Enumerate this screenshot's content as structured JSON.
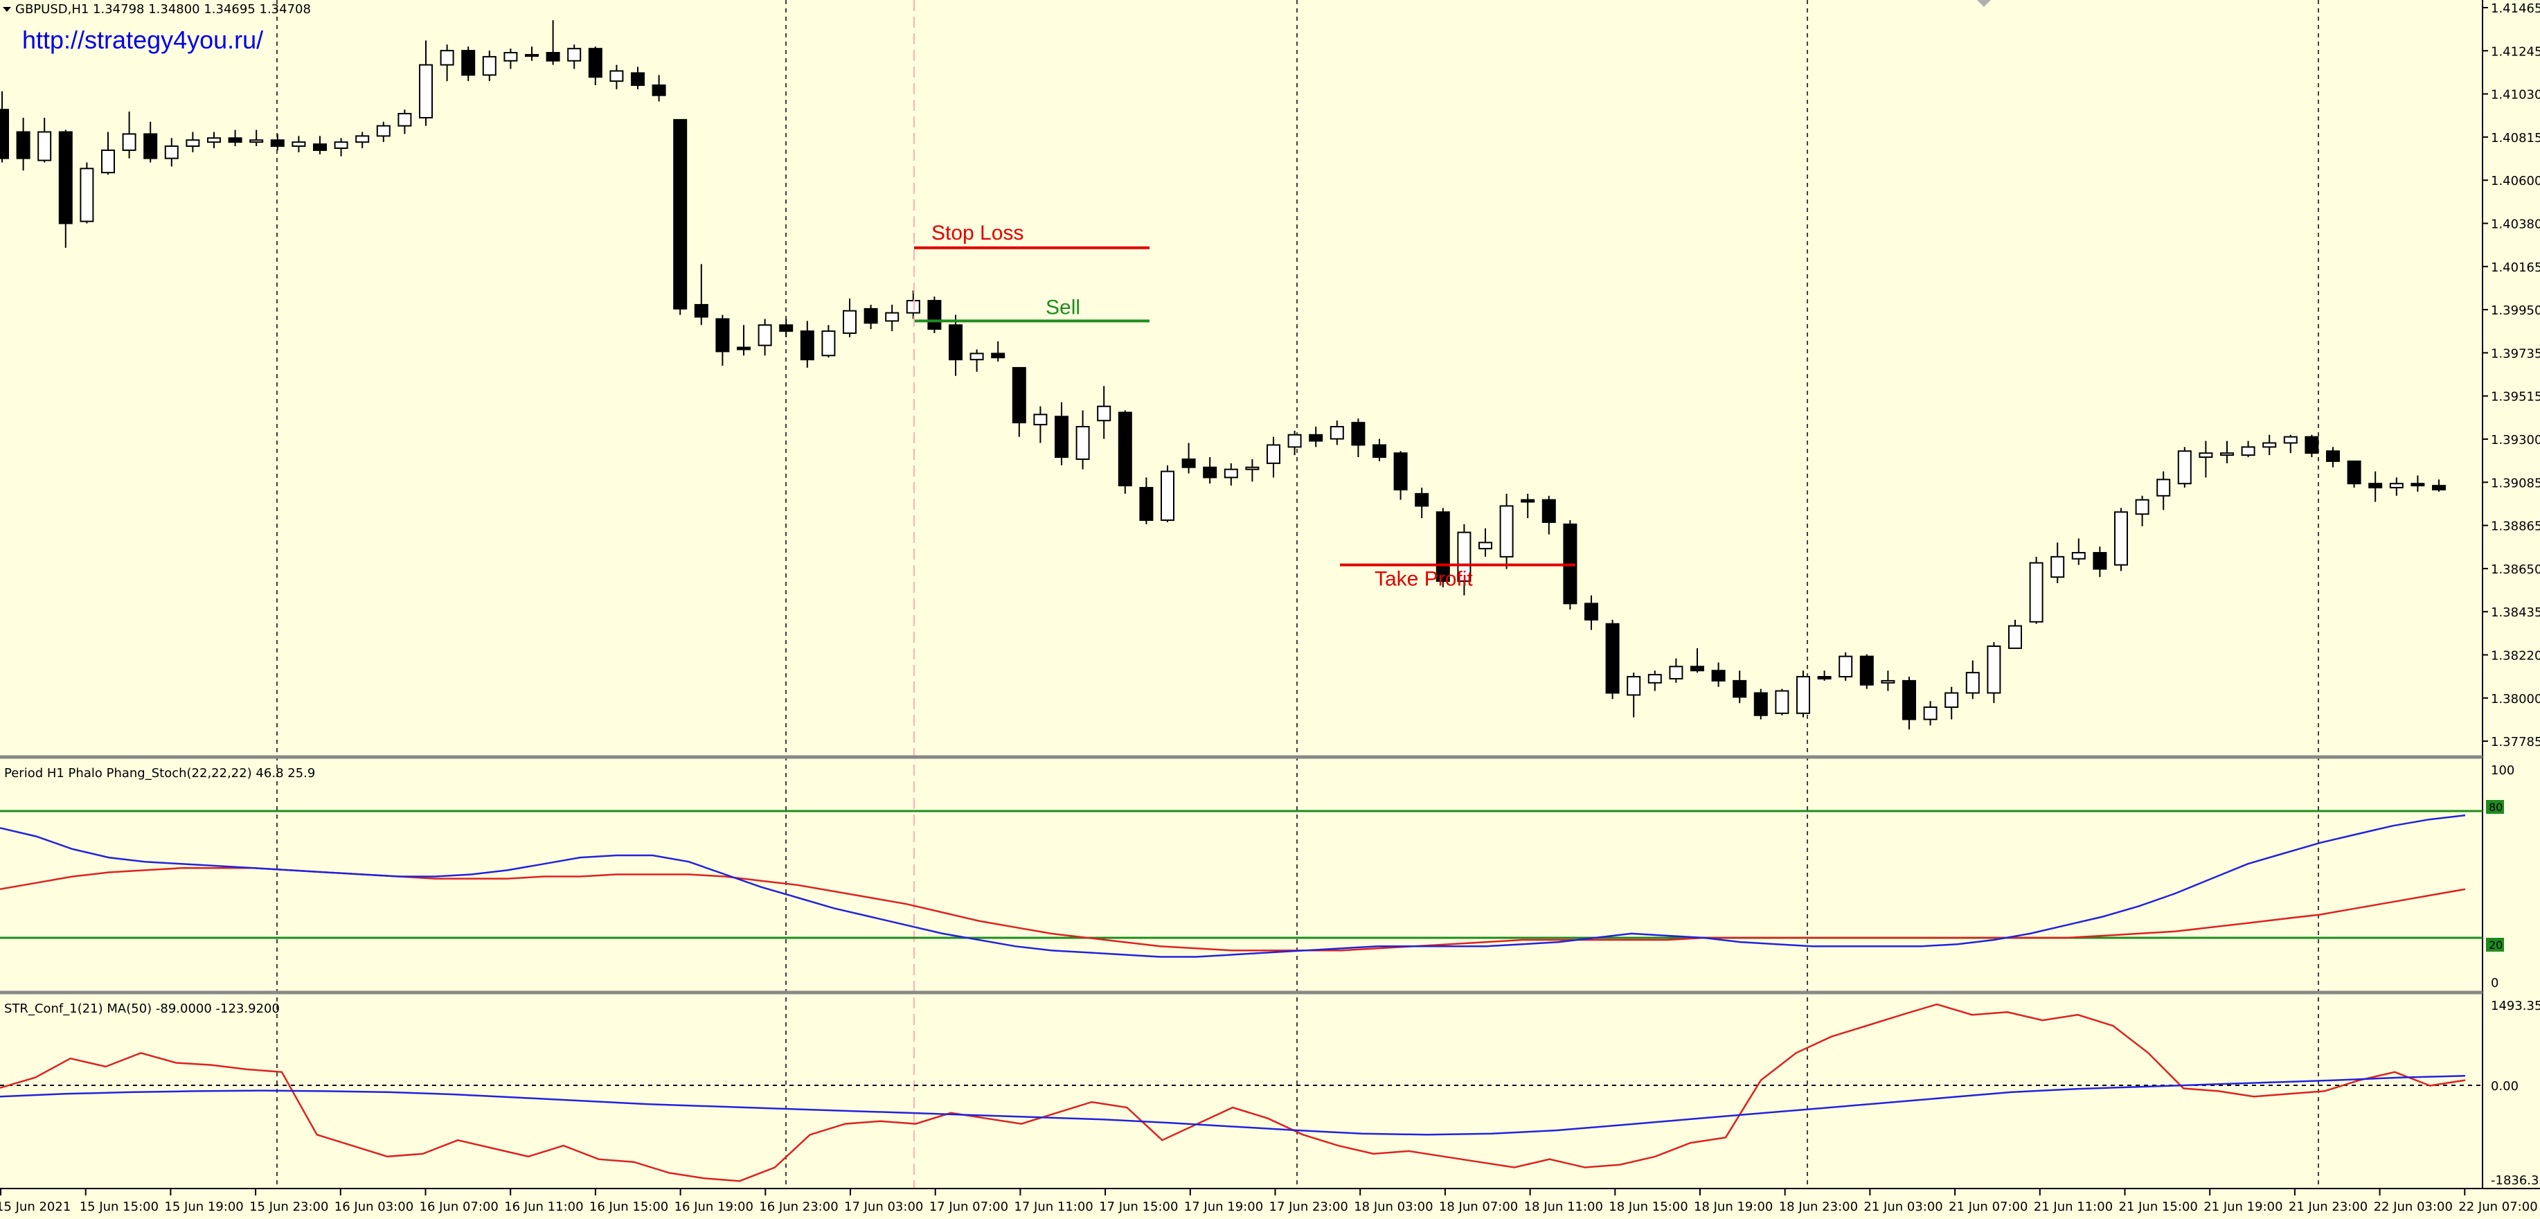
{
  "header": {
    "symbol_line": "GBPUSD,H1  1.34798 1.34800 1.34695 1.34708",
    "url": "http://strategy4you.ru/"
  },
  "price_axis": {
    "labels": [
      "1.41465",
      "1.41245",
      "1.41030",
      "1.40815",
      "1.40600",
      "1.40380",
      "1.40165",
      "1.39950",
      "1.39735",
      "1.39515",
      "1.39300",
      "1.39085",
      "1.38865",
      "1.38650",
      "1.38435",
      "1.38220",
      "1.38000",
      "1.37785"
    ]
  },
  "time_axis": {
    "labels": [
      "15 Jun 2021",
      "15 Jun 15:00",
      "15 Jun 19:00",
      "15 Jun 23:00",
      "16 Jun 03:00",
      "16 Jun 07:00",
      "16 Jun 11:00",
      "16 Jun 15:00",
      "16 Jun 19:00",
      "16 Jun 23:00",
      "17 Jun 03:00",
      "17 Jun 07:00",
      "17 Jun 11:00",
      "17 Jun 15:00",
      "17 Jun 19:00",
      "17 Jun 23:00",
      "18 Jun 03:00",
      "18 Jun 07:00",
      "18 Jun 11:00",
      "18 Jun 15:00",
      "18 Jun 19:00",
      "18 Jun 23:00",
      "21 Jun 03:00",
      "21 Jun 07:00",
      "21 Jun 11:00",
      "21 Jun 15:00",
      "21 Jun 19:00",
      "21 Jun 23:00",
      "22 Jun 03:00",
      "22 Jun 07:00"
    ]
  },
  "levels": {
    "stop_loss": {
      "label": "Stop Loss",
      "price": 1.4028,
      "color": "#E00000"
    },
    "sell": {
      "label": "Sell",
      "price": 1.3992,
      "color": "#1E8C1E"
    },
    "take_profit": {
      "label": "Take Profit",
      "price": 1.3872,
      "color": "#E00000"
    }
  },
  "stoch": {
    "title": "Period H1 Phalo Phang_Stoch(22,22,22) 46.8 25.9",
    "scale_labels": [
      "100",
      "80",
      "20",
      "0"
    ],
    "upper_level": "80",
    "lower_level": "20"
  },
  "str": {
    "title": "STR_Conf_1(21) MA(50) -89.0000 -123.9200",
    "scale_labels": [
      "1493.35",
      "0.00",
      "-1836.35"
    ]
  },
  "colors": {
    "background": "#FFFFE0",
    "bull_body": "#FFFFFF",
    "bear_body": "#000000",
    "blue_line": "#2222DD",
    "red_line": "#DD2222",
    "green_level": "#1E8C1E",
    "accent_url": "#0000EE"
  },
  "chart_data": [
    {
      "type": "candlestick",
      "title": "GBPUSD,H1",
      "ylim": [
        1.37785,
        1.41465
      ],
      "ohlc_note": "approximate hourly candles read from the chart",
      "candles": [
        [
          1.4096,
          1.4105,
          1.407,
          1.4072
        ],
        [
          1.4085,
          1.4092,
          1.4066,
          1.4072
        ],
        [
          1.4071,
          1.4092,
          1.407,
          1.4085
        ],
        [
          1.4085,
          1.4086,
          1.4028,
          1.404
        ],
        [
          1.4041,
          1.407,
          1.404,
          1.4067
        ],
        [
          1.4065,
          1.4085,
          1.4064,
          1.4076
        ],
        [
          1.4076,
          1.4095,
          1.4072,
          1.4084
        ],
        [
          1.4084,
          1.409,
          1.407,
          1.4072
        ],
        [
          1.4072,
          1.4082,
          1.4068,
          1.4078
        ],
        [
          1.4078,
          1.4085,
          1.4075,
          1.4081
        ],
        [
          1.408,
          1.4085,
          1.4077,
          1.4082
        ],
        [
          1.4082,
          1.4086,
          1.4078,
          1.408
        ],
        [
          1.408,
          1.4086,
          1.4078,
          1.4081
        ],
        [
          1.4081,
          1.4084,
          1.4076,
          1.4078
        ],
        [
          1.4078,
          1.4083,
          1.4075,
          1.408
        ],
        [
          1.4079,
          1.4083,
          1.4074,
          1.4076
        ],
        [
          1.4077,
          1.4082,
          1.4073,
          1.408
        ],
        [
          1.408,
          1.4085,
          1.4077,
          1.4083
        ],
        [
          1.4083,
          1.409,
          1.408,
          1.4088
        ],
        [
          1.4088,
          1.4096,
          1.4084,
          1.4094
        ],
        [
          1.4092,
          1.413,
          1.4088,
          1.4118
        ],
        [
          1.4118,
          1.4128,
          1.411,
          1.4125
        ],
        [
          1.4125,
          1.4127,
          1.411,
          1.4113
        ],
        [
          1.4113,
          1.4125,
          1.411,
          1.4122
        ],
        [
          1.412,
          1.4126,
          1.4116,
          1.4124
        ],
        [
          1.4123,
          1.4127,
          1.412,
          1.4123
        ],
        [
          1.4124,
          1.414,
          1.4118,
          1.412
        ],
        [
          1.412,
          1.4128,
          1.4116,
          1.4126
        ],
        [
          1.4126,
          1.4127,
          1.4108,
          1.4112
        ],
        [
          1.411,
          1.4118,
          1.4106,
          1.4115
        ],
        [
          1.4114,
          1.4117,
          1.4106,
          1.4108
        ],
        [
          1.4108,
          1.4113,
          1.41,
          1.4103
        ],
        [
          1.4091,
          1.4091,
          1.3995,
          1.3998
        ],
        [
          1.4,
          1.402,
          1.399,
          1.3994
        ],
        [
          1.3993,
          1.3995,
          1.397,
          1.3977
        ],
        [
          1.3979,
          1.399,
          1.3975,
          1.3978
        ],
        [
          1.398,
          1.3993,
          1.3975,
          1.399
        ],
        [
          1.399,
          1.3993,
          1.3984,
          1.3987
        ],
        [
          1.3987,
          1.3992,
          1.3969,
          1.3973
        ],
        [
          1.3975,
          1.399,
          1.3974,
          1.3987
        ],
        [
          1.3986,
          1.4003,
          1.3984,
          1.3997
        ],
        [
          1.3998,
          1.4,
          1.3988,
          1.3991
        ],
        [
          1.3992,
          1.4,
          1.3987,
          1.3996
        ],
        [
          1.3996,
          1.4007,
          1.3993,
          1.4002
        ],
        [
          1.4002,
          1.4004,
          1.3986,
          1.3988
        ],
        [
          1.399,
          1.3995,
          1.3965,
          1.3973
        ],
        [
          1.3973,
          1.3978,
          1.3967,
          1.3976
        ],
        [
          1.3976,
          1.3982,
          1.3972,
          1.3974
        ],
        [
          1.3969,
          1.3969,
          1.3935,
          1.3942
        ],
        [
          1.3941,
          1.395,
          1.3932,
          1.3946
        ],
        [
          1.3945,
          1.3952,
          1.3921,
          1.3925
        ],
        [
          1.3924,
          1.3948,
          1.3919,
          1.394
        ],
        [
          1.3943,
          1.396,
          1.3934,
          1.395
        ],
        [
          1.3947,
          1.3948,
          1.3907,
          1.3911
        ],
        [
          1.391,
          1.3915,
          1.3892,
          1.3894
        ],
        [
          1.3894,
          1.3921,
          1.3893,
          1.3918
        ],
        [
          1.3924,
          1.3932,
          1.3917,
          1.392
        ],
        [
          1.392,
          1.3925,
          1.3912,
          1.3915
        ],
        [
          1.3915,
          1.3922,
          1.3911,
          1.3919
        ],
        [
          1.3919,
          1.3924,
          1.3913,
          1.392
        ],
        [
          1.3922,
          1.3935,
          1.3915,
          1.3931
        ],
        [
          1.393,
          1.3938,
          1.3926,
          1.3936
        ],
        [
          1.3936,
          1.394,
          1.393,
          1.3933
        ],
        [
          1.3934,
          1.3943,
          1.3931,
          1.394
        ],
        [
          1.3942,
          1.3944,
          1.3925,
          1.3931
        ],
        [
          1.3931,
          1.3934,
          1.3923,
          1.3925
        ],
        [
          1.3927,
          1.3928,
          1.3904,
          1.3909
        ],
        [
          1.3907,
          1.391,
          1.3895,
          1.3901
        ],
        [
          1.3898,
          1.39,
          1.3861,
          1.3864
        ],
        [
          1.3864,
          1.3892,
          1.3857,
          1.3888
        ],
        [
          1.388,
          1.389,
          1.3876,
          1.3883
        ],
        [
          1.3876,
          1.3907,
          1.387,
          1.3901
        ],
        [
          1.3904,
          1.3907,
          1.3895,
          1.3903
        ],
        [
          1.3904,
          1.3906,
          1.3887,
          1.3893
        ],
        [
          1.3892,
          1.3894,
          1.385,
          1.3853
        ],
        [
          1.3853,
          1.3857,
          1.384,
          1.3845
        ],
        [
          1.3843,
          1.3845,
          1.3806,
          1.3809
        ],
        [
          1.3808,
          1.3819,
          1.3797,
          1.3817
        ],
        [
          1.3814,
          1.382,
          1.381,
          1.3818
        ],
        [
          1.3816,
          1.3826,
          1.3814,
          1.3822
        ],
        [
          1.3822,
          1.3831,
          1.3819,
          1.382
        ],
        [
          1.382,
          1.3824,
          1.3812,
          1.3815
        ],
        [
          1.3815,
          1.382,
          1.3804,
          1.3807
        ],
        [
          1.3809,
          1.3811,
          1.3796,
          1.3798
        ],
        [
          1.3799,
          1.3811,
          1.3798,
          1.381
        ],
        [
          1.3799,
          1.382,
          1.3797,
          1.3817
        ],
        [
          1.3817,
          1.382,
          1.3815,
          1.3816
        ],
        [
          1.3817,
          1.3829,
          1.3815,
          1.3827
        ],
        [
          1.3827,
          1.3828,
          1.3811,
          1.3813
        ],
        [
          1.3814,
          1.382,
          1.381,
          1.3815
        ],
        [
          1.3815,
          1.3817,
          1.3791,
          1.3796
        ],
        [
          1.3796,
          1.3805,
          1.3793,
          1.3802
        ],
        [
          1.3802,
          1.3812,
          1.3796,
          1.3809
        ],
        [
          1.3809,
          1.3825,
          1.3806,
          1.3819
        ],
        [
          1.3809,
          1.3834,
          1.3804,
          1.3832
        ],
        [
          1.3831,
          1.3845,
          1.3831,
          1.3842
        ],
        [
          1.3844,
          1.3876,
          1.3843,
          1.3873
        ],
        [
          1.3866,
          1.3883,
          1.3863,
          1.3876
        ],
        [
          1.3875,
          1.3885,
          1.3872,
          1.3878
        ],
        [
          1.3878,
          1.3881,
          1.3866,
          1.387
        ],
        [
          1.3872,
          1.39,
          1.3869,
          1.3898
        ],
        [
          1.3897,
          1.3906,
          1.3891,
          1.3904
        ],
        [
          1.3906,
          1.3918,
          1.3899,
          1.3914
        ],
        [
          1.3912,
          1.393,
          1.391,
          1.3928
        ],
        [
          1.3925,
          1.3933,
          1.3915,
          1.3927
        ],
        [
          1.3926,
          1.3933,
          1.3922,
          1.3927
        ],
        [
          1.3926,
          1.3933,
          1.3925,
          1.393
        ],
        [
          1.393,
          1.3936,
          1.3926,
          1.3932
        ],
        [
          1.3932,
          1.3936,
          1.3927,
          1.3935
        ],
        [
          1.3935,
          1.3936,
          1.3925,
          1.3927
        ],
        [
          1.3928,
          1.393,
          1.392,
          1.3923
        ],
        [
          1.3923,
          1.3923,
          1.391,
          1.3912
        ],
        [
          1.3912,
          1.3918,
          1.3903,
          1.391
        ],
        [
          1.391,
          1.3915,
          1.3906,
          1.3912
        ],
        [
          1.3912,
          1.3916,
          1.3908,
          1.3911
        ],
        [
          1.3911,
          1.3914,
          1.3908,
          1.3909
        ]
      ]
    },
    {
      "type": "line",
      "title": "Period H1 Phalo Phang_Stoch(22,22,22) 46.8 25.9",
      "ylim": [
        0,
        100
      ],
      "levels": [
        80,
        20
      ],
      "series": [
        {
          "color": "#2222DD",
          "values": [
            72,
            68,
            62,
            58,
            56,
            55,
            54,
            53,
            52,
            51,
            50,
            49,
            49,
            50,
            52,
            55,
            58,
            59,
            59,
            56,
            50,
            44,
            39,
            34,
            30,
            26,
            22,
            19,
            16,
            14,
            13,
            12,
            11,
            11,
            12,
            13,
            14,
            15,
            16,
            16,
            16,
            16,
            17,
            18,
            20,
            22,
            21,
            20,
            18,
            17,
            16,
            16,
            16,
            16,
            17,
            19,
            22,
            26,
            30,
            35,
            41,
            48,
            55,
            60,
            65,
            69,
            73,
            76,
            78
          ]
        },
        {
          "color": "#DD2222",
          "values": [
            43,
            46,
            49,
            51,
            52,
            53,
            53,
            53,
            52,
            51,
            50,
            49,
            48,
            48,
            48,
            49,
            49,
            50,
            50,
            50,
            49,
            47,
            45,
            42,
            39,
            36,
            32,
            28,
            25,
            22,
            20,
            18,
            16,
            15,
            14,
            14,
            14,
            14,
            15,
            16,
            17,
            18,
            19,
            19,
            19,
            19,
            19,
            20,
            20,
            20,
            20,
            20,
            20,
            20,
            20,
            20,
            20,
            20,
            21,
            22,
            23,
            25,
            27,
            29,
            31,
            34,
            37,
            40,
            43
          ]
        }
      ]
    },
    {
      "type": "line",
      "title": "STR_Conf_1(21) MA(50) -89.0000 -123.9200",
      "ylim": [
        -1836.35,
        1493.35
      ],
      "series": [
        {
          "color": "#DD2222",
          "values": [
            -40,
            150,
            500,
            350,
            600,
            420,
            380,
            300,
            250,
            -900,
            -1100,
            -1300,
            -1250,
            -1000,
            -1150,
            -1300,
            -1100,
            -1350,
            -1400,
            -1600,
            -1700,
            -1750,
            -1500,
            -900,
            -700,
            -650,
            -700,
            -500,
            -600,
            -700,
            -500,
            -300,
            -400,
            -1000,
            -700,
            -400,
            -600,
            -900,
            -1100,
            -1250,
            -1200,
            -1300,
            -1400,
            -1500,
            -1350,
            -1500,
            -1450,
            -1300,
            -1050,
            -950,
            100,
            600,
            900,
            1100,
            1300,
            1493,
            1300,
            1350,
            1200,
            1300,
            1100,
            600,
            -50,
            -100,
            -200,
            -150,
            -100,
            100,
            250,
            0,
            100
          ]
        },
        {
          "color": "#2222DD",
          "values": [
            -200,
            -150,
            -120,
            -100,
            -90,
            -100,
            -120,
            -160,
            -220,
            -280,
            -340,
            -380,
            -420,
            -460,
            -500,
            -540,
            -580,
            -620,
            -680,
            -750,
            -820,
            -880,
            -900,
            -880,
            -820,
            -720,
            -620,
            -520,
            -420,
            -320,
            -220,
            -120,
            -60,
            -20,
            20,
            60,
            100,
            150,
            180
          ]
        }
      ]
    }
  ]
}
